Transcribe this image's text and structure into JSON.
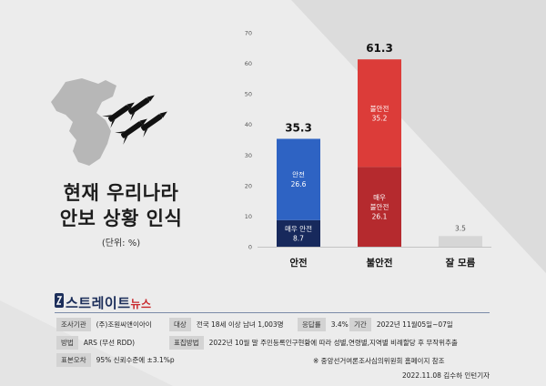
{
  "title_line1": "현재 우리나라",
  "title_line2": "안보 상황 인식",
  "unit": "(단위: %)",
  "logo": {
    "main": "스트레이트",
    "sub": "뉴스"
  },
  "info": {
    "survey_org_label": "조사기관",
    "survey_org": "(주)조원씨앤이아이",
    "target_label": "대상",
    "target": "전국 18세 이상 남녀 1,003명",
    "response_label": "응답률",
    "response": "3.4%",
    "period_label": "기간",
    "period": "2022년 11월05일~07일",
    "method_label": "방법",
    "method": "ARS (무선 RDD)",
    "sampling_label": "표집방법",
    "sampling": "2022년 10월 말 주민등록인구현황에 따라 성별,연령별,지역별 비례할당 후 무작위추출",
    "error_label": "표본오차",
    "error": "95% 신뢰수준에 ±3.1%p",
    "note": "※ 중앙선거여론조사심의위원회 홈페이지 참조"
  },
  "credit": "2022.11.08 김수하 인턴기자",
  "colors": {
    "safe_dark": "#17295c",
    "safe": "#2e63c3",
    "unsafe_dark": "#b52a2e",
    "unsafe": "#dc3c39",
    "unknown": "#d6d6d6"
  },
  "chart_data": {
    "type": "bar",
    "stacked": true,
    "categories": [
      "안전",
      "불안전",
      "잘 모름"
    ],
    "totals": [
      35.3,
      61.3,
      3.5
    ],
    "series": [
      {
        "name": "매우 안전",
        "values": [
          8.7,
          null,
          null
        ],
        "color": "#17295c"
      },
      {
        "name": "안전",
        "values": [
          26.6,
          null,
          null
        ],
        "color": "#2e63c3"
      },
      {
        "name": "매우 불안전",
        "values": [
          null,
          26.1,
          null
        ],
        "color": "#b52a2e"
      },
      {
        "name": "불안전",
        "values": [
          null,
          35.2,
          null
        ],
        "color": "#dc3c39"
      },
      {
        "values": [
          null,
          null,
          3.5
        ],
        "color": "#d6d6d6"
      }
    ],
    "segment_labels": [
      [
        "매우 안전",
        "8.7"
      ],
      [
        "안전",
        "26.6"
      ],
      [
        "매우 불안전",
        "26.1"
      ],
      [
        "불안전",
        "35.2"
      ]
    ],
    "ylim": [
      0,
      70
    ],
    "yticks": [
      0,
      10,
      20,
      30,
      40,
      50,
      60,
      70
    ],
    "grid": false
  }
}
